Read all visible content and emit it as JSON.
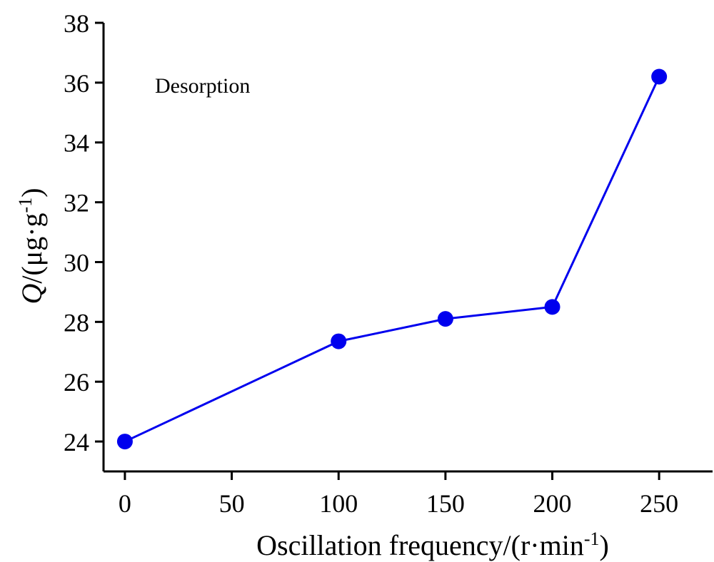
{
  "chart_data": {
    "type": "line",
    "title": "",
    "annotation": "Desorption",
    "xlabel": {
      "main": "Oscillation frequency/(r·min",
      "sup": "-1",
      "close": ")"
    },
    "ylabel": {
      "var": "Q",
      "unit": "/(μg·g",
      "sup": "-1",
      "close": ")"
    },
    "xlim": [
      -10,
      275
    ],
    "ylim": [
      23.0,
      38
    ],
    "xticks": [
      0,
      50,
      100,
      150,
      200,
      250
    ],
    "yticks": [
      24,
      26,
      28,
      30,
      32,
      34,
      36,
      38
    ],
    "grid": false,
    "series": [
      {
        "color": "#0000ee",
        "x": [
          0,
          100,
          150,
          200,
          250
        ],
        "y": [
          24.0,
          27.35,
          28.1,
          28.5,
          36.2
        ]
      }
    ]
  }
}
